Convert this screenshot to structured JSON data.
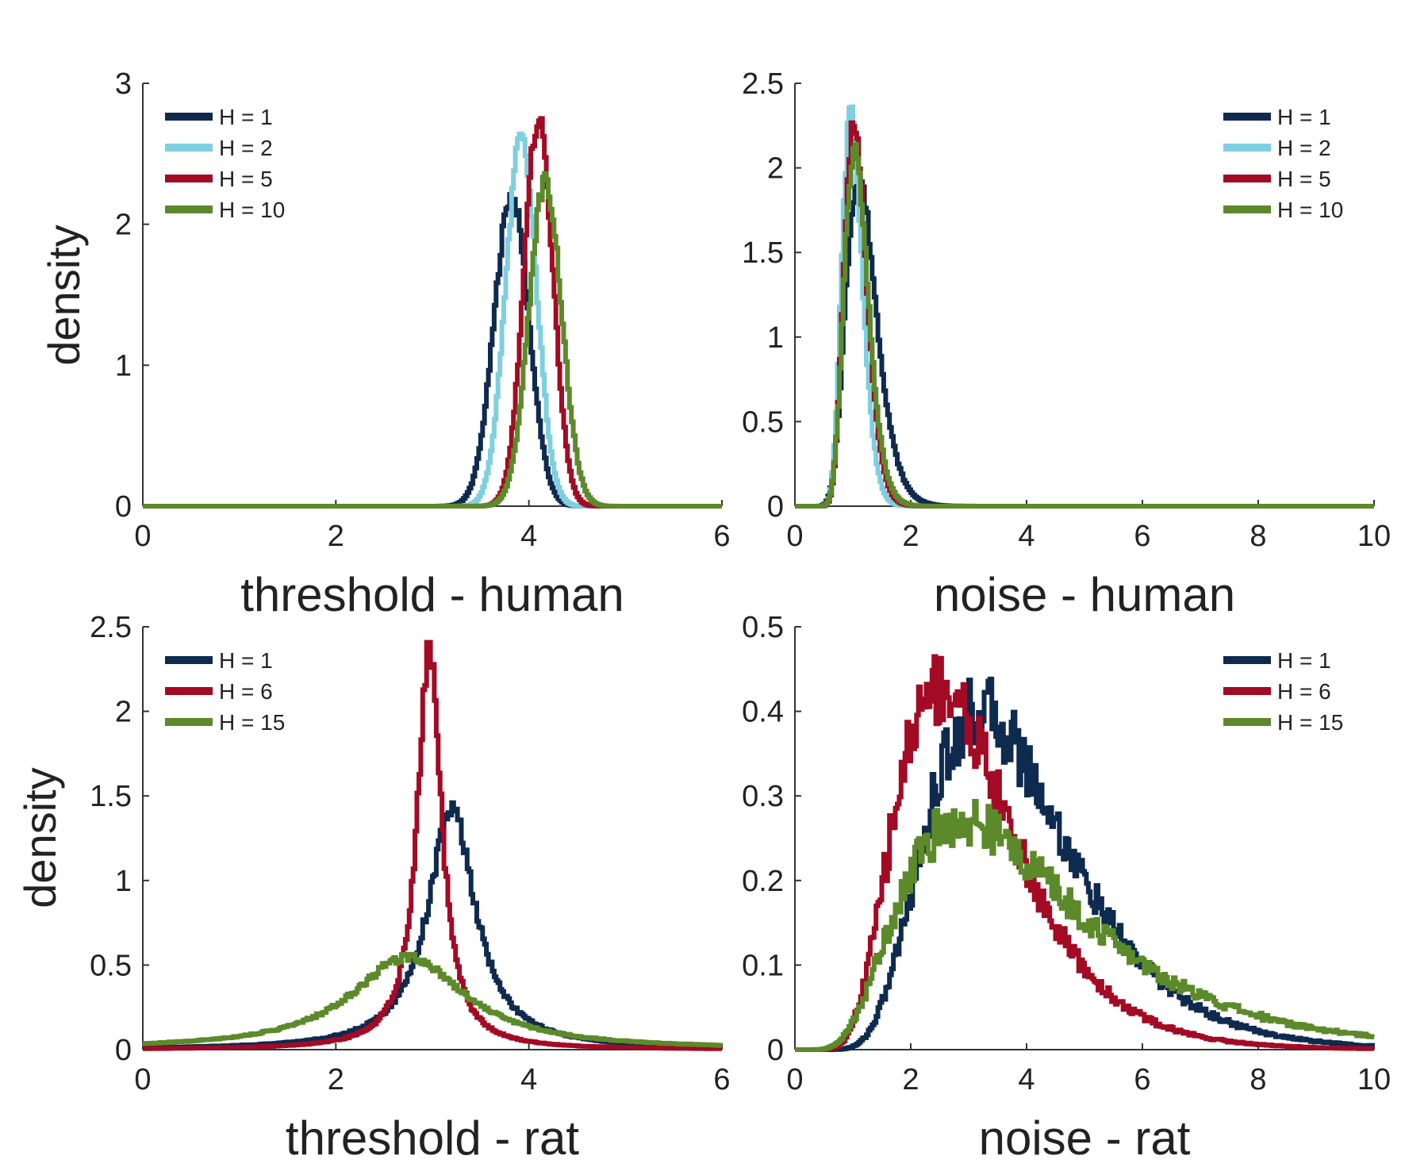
{
  "colors": {
    "navy": "#0E2A4E",
    "light_blue": "#7FCFE0",
    "red": "#A30A24",
    "green": "#5C8A2A"
  },
  "chart_data": [
    {
      "type": "line",
      "xlabel": "threshold - human",
      "ylabel": "density",
      "xlim": [
        0,
        6
      ],
      "ylim": [
        0,
        3
      ],
      "xticks": [
        0,
        2,
        4,
        6
      ],
      "yticks": [
        0,
        1,
        2,
        3
      ],
      "legend_position": "top-left",
      "series": [
        {
          "name": "H = 1",
          "color": "#0E2A4E",
          "dist": "gauss",
          "mean": 3.82,
          "sd": 0.18,
          "peak": 2.2
        },
        {
          "name": "H = 2",
          "color": "#7FCFE0",
          "dist": "gauss",
          "mean": 3.92,
          "sd": 0.16,
          "peak": 2.6
        },
        {
          "name": "H = 5",
          "color": "#A30A24",
          "dist": "gauss",
          "mean": 4.1,
          "sd": 0.15,
          "peak": 2.75
        },
        {
          "name": "H = 10",
          "color": "#5C8A2A",
          "dist": "gauss",
          "mean": 4.17,
          "sd": 0.17,
          "peak": 2.3
        }
      ]
    },
    {
      "type": "line",
      "xlabel": "noise - human",
      "ylabel": "",
      "xlim": [
        0,
        10
      ],
      "ylim": [
        0,
        2.5
      ],
      "xticks": [
        0,
        2,
        4,
        6,
        8,
        10
      ],
      "yticks": [
        0,
        0.5,
        1,
        1.5,
        2,
        2.5
      ],
      "legend_position": "top-right",
      "series": [
        {
          "name": "H = 1",
          "color": "#0E2A4E",
          "dist": "lognorm",
          "mode": 1.1,
          "sigma": 0.24,
          "peak": 1.95
        },
        {
          "name": "H = 2",
          "color": "#7FCFE0",
          "dist": "lognorm",
          "mode": 0.97,
          "sigma": 0.18,
          "peak": 2.32
        },
        {
          "name": "H = 5",
          "color": "#A30A24",
          "dist": "lognorm",
          "mode": 1.02,
          "sigma": 0.19,
          "peak": 2.25
        },
        {
          "name": "H = 10",
          "color": "#5C8A2A",
          "dist": "lognorm",
          "mode": 1.03,
          "sigma": 0.2,
          "peak": 2.1
        }
      ]
    },
    {
      "type": "line",
      "xlabel": "threshold - rat",
      "ylabel": "density",
      "xlim": [
        0,
        6
      ],
      "ylim": [
        0,
        2.5
      ],
      "xticks": [
        0,
        2,
        4,
        6
      ],
      "yticks": [
        0,
        0.5,
        1,
        1.5,
        2,
        2.5
      ],
      "legend_position": "top-left",
      "series": [
        {
          "name": "H = 1",
          "color": "#0E2A4E",
          "dist": "cauchy",
          "mean": 3.2,
          "gamma": 0.3,
          "peak": 1.42
        },
        {
          "name": "H = 6",
          "color": "#A30A24",
          "dist": "cauchy",
          "mean": 2.97,
          "gamma": 0.15,
          "peak": 2.38
        },
        {
          "name": "H = 15",
          "color": "#5C8A2A",
          "dist": "cauchy",
          "mean": 2.75,
          "gamma": 0.72,
          "peak": 0.55
        }
      ]
    },
    {
      "type": "line",
      "xlabel": "noise - rat",
      "ylabel": "",
      "xlim": [
        0,
        10
      ],
      "ylim": [
        0,
        0.5
      ],
      "xticks": [
        0,
        2,
        4,
        6,
        8,
        10
      ],
      "yticks": [
        0,
        0.1,
        0.2,
        0.3,
        0.4,
        0.5
      ],
      "legend_position": "top-right",
      "series": [
        {
          "name": "H = 1",
          "color": "#0E2A4E",
          "dist": "lognorm",
          "mode": 3.2,
          "sigma": 0.38,
          "peak": 0.4
        },
        {
          "name": "H = 6",
          "color": "#A30A24",
          "dist": "lognorm",
          "mode": 2.5,
          "sigma": 0.4,
          "peak": 0.43
        },
        {
          "name": "H = 15",
          "color": "#5C8A2A",
          "dist": "lognorm",
          "mode": 2.9,
          "sigma": 0.52,
          "peak": 0.27
        }
      ]
    }
  ]
}
